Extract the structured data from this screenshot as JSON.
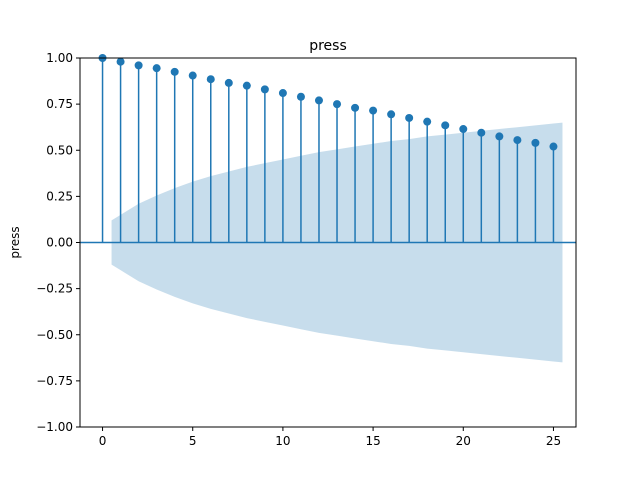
{
  "chart_data": {
    "type": "stem",
    "title": "press",
    "xlabel": "",
    "ylabel": "press",
    "xlim": [
      -1.25,
      26.25
    ],
    "ylim": [
      -1.0,
      1.0
    ],
    "xticks": [
      0,
      5,
      10,
      15,
      20,
      25
    ],
    "yticks": [
      -1.0,
      -0.75,
      -0.5,
      -0.25,
      0.0,
      0.25,
      0.5,
      0.75,
      1.0
    ],
    "xtick_labels": [
      "0",
      "5",
      "10",
      "15",
      "20",
      "25"
    ],
    "ytick_labels": [
      "−1.00",
      "−0.75",
      "−0.50",
      "−0.25",
      "0.00",
      "0.25",
      "0.50",
      "0.75",
      "1.00"
    ],
    "lags": [
      0,
      1,
      2,
      3,
      4,
      5,
      6,
      7,
      8,
      9,
      10,
      11,
      12,
      13,
      14,
      15,
      16,
      17,
      18,
      19,
      20,
      21,
      22,
      23,
      24,
      25
    ],
    "acf": [
      1.0,
      0.98,
      0.96,
      0.945,
      0.925,
      0.905,
      0.885,
      0.865,
      0.85,
      0.83,
      0.81,
      0.79,
      0.77,
      0.75,
      0.73,
      0.715,
      0.695,
      0.675,
      0.655,
      0.635,
      0.615,
      0.595,
      0.575,
      0.555,
      0.54,
      0.52
    ],
    "confint_x": [
      0.5,
      1,
      2,
      3,
      4,
      5,
      6,
      7,
      8,
      9,
      10,
      11,
      12,
      13,
      14,
      15,
      16,
      17,
      18,
      19,
      20,
      21,
      22,
      23,
      24,
      25,
      25.5
    ],
    "confint_upper": [
      0.12,
      0.15,
      0.21,
      0.255,
      0.295,
      0.33,
      0.36,
      0.385,
      0.41,
      0.43,
      0.45,
      0.47,
      0.49,
      0.505,
      0.52,
      0.535,
      0.55,
      0.56,
      0.575,
      0.585,
      0.595,
      0.605,
      0.615,
      0.625,
      0.635,
      0.645,
      0.65
    ],
    "colors": {
      "stem": "#1f77b4",
      "marker": "#1f77b4",
      "confint": "#1f77b4",
      "zero_line": "#1f77b4"
    },
    "grid": false
  }
}
